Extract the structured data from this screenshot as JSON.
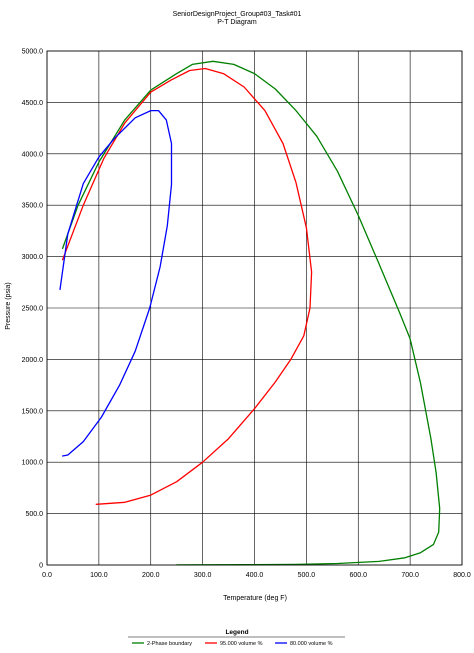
{
  "chart_data": {
    "type": "line",
    "title": "SeniorDesignProject_Group#03_Task#01",
    "subtitle": "P-T Diagram",
    "xlabel": "Temperature (deg F)",
    "ylabel": "Pressure (psia)",
    "xlim": [
      0,
      800
    ],
    "ylim": [
      0,
      5000
    ],
    "x_ticks": [
      0,
      100,
      200,
      300,
      400,
      500,
      600,
      700,
      800
    ],
    "y_ticks": [
      0,
      500,
      1000,
      1500,
      2000,
      2500,
      3000,
      3500,
      4000,
      4500,
      5000
    ],
    "x_tick_labels": [
      "0.0",
      "100.0",
      "200.0",
      "300.0",
      "400.0",
      "500.0",
      "600.0",
      "700.0",
      "800.0"
    ],
    "y_tick_labels": [
      "0",
      "500.0",
      "1000.0",
      "1500.0",
      "2000.0",
      "2500.0",
      "3000.0",
      "3500.0",
      "4000.0",
      "4500.0",
      "5000.0"
    ],
    "grid": true,
    "legend_title": "Legend",
    "legend_position": "bottom",
    "series": [
      {
        "name": "2-Phase boundary",
        "color": "#008000",
        "points": [
          [
            30,
            3080
          ],
          [
            60,
            3500
          ],
          [
            100,
            3920
          ],
          [
            150,
            4330
          ],
          [
            200,
            4620
          ],
          [
            250,
            4780
          ],
          [
            280,
            4870
          ],
          [
            320,
            4900
          ],
          [
            360,
            4870
          ],
          [
            400,
            4780
          ],
          [
            440,
            4630
          ],
          [
            480,
            4420
          ],
          [
            520,
            4170
          ],
          [
            560,
            3830
          ],
          [
            600,
            3400
          ],
          [
            640,
            2930
          ],
          [
            680,
            2450
          ],
          [
            700,
            2200
          ],
          [
            720,
            1770
          ],
          [
            740,
            1230
          ],
          [
            750,
            900
          ],
          [
            757,
            550
          ],
          [
            755,
            320
          ],
          [
            745,
            200
          ],
          [
            720,
            120
          ],
          [
            690,
            70
          ],
          [
            640,
            35
          ],
          [
            560,
            15
          ],
          [
            480,
            6
          ],
          [
            380,
            3
          ],
          [
            250,
            1
          ]
        ]
      },
      {
        "name": "95.000 volume %",
        "color": "#ff0000",
        "points": [
          [
            30,
            2970
          ],
          [
            70,
            3500
          ],
          [
            110,
            3960
          ],
          [
            150,
            4300
          ],
          [
            200,
            4600
          ],
          [
            240,
            4720
          ],
          [
            275,
            4810
          ],
          [
            305,
            4830
          ],
          [
            340,
            4780
          ],
          [
            380,
            4650
          ],
          [
            420,
            4420
          ],
          [
            455,
            4100
          ],
          [
            480,
            3720
          ],
          [
            500,
            3280
          ],
          [
            510,
            2850
          ],
          [
            507,
            2500
          ],
          [
            495,
            2230
          ],
          [
            470,
            2000
          ],
          [
            440,
            1780
          ],
          [
            400,
            1520
          ],
          [
            350,
            1230
          ],
          [
            300,
            1000
          ],
          [
            250,
            810
          ],
          [
            200,
            680
          ],
          [
            150,
            610
          ],
          [
            95,
            590
          ]
        ]
      },
      {
        "name": "80.000 volume %",
        "color": "#0000ff",
        "points": [
          [
            25,
            2680
          ],
          [
            40,
            3220
          ],
          [
            70,
            3710
          ],
          [
            100,
            3970
          ],
          [
            130,
            4150
          ],
          [
            170,
            4350
          ],
          [
            200,
            4420
          ],
          [
            215,
            4420
          ],
          [
            230,
            4330
          ],
          [
            240,
            4100
          ],
          [
            240,
            3700
          ],
          [
            232,
            3300
          ],
          [
            218,
            2900
          ],
          [
            198,
            2500
          ],
          [
            170,
            2080
          ],
          [
            140,
            1750
          ],
          [
            105,
            1440
          ],
          [
            70,
            1200
          ],
          [
            40,
            1070
          ],
          [
            30,
            1060
          ]
        ]
      }
    ]
  }
}
